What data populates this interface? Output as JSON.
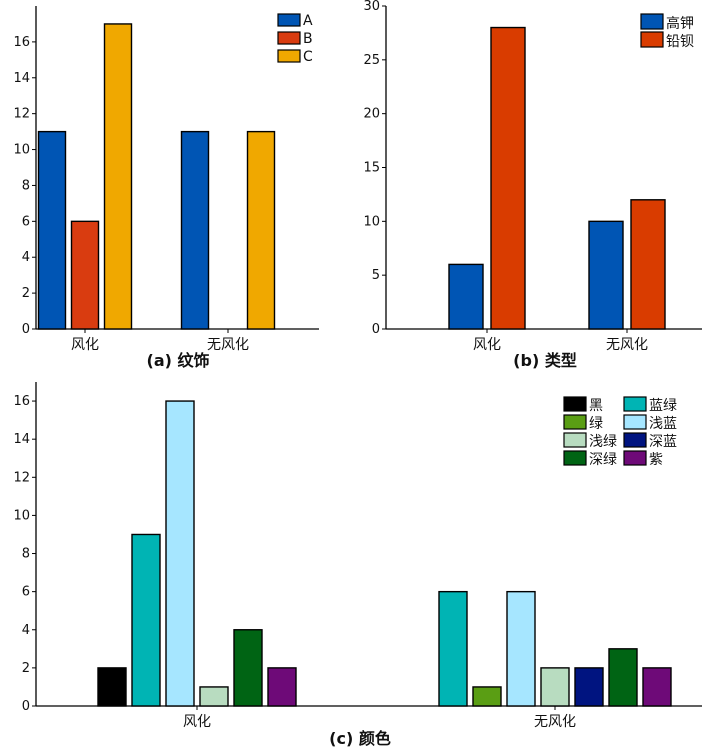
{
  "chart_data": [
    {
      "id": "a",
      "type": "bar",
      "title": "(a) 纹饰",
      "categories": [
        "风化",
        "无风化"
      ],
      "series": [
        {
          "name": "A",
          "color": "#0055b4",
          "values": [
            11,
            11
          ]
        },
        {
          "name": "B",
          "color": "#d93c10",
          "values": [
            6,
            0
          ]
        },
        {
          "name": "C",
          "color": "#f0a800",
          "values": [
            17,
            11
          ]
        }
      ],
      "ylim": [
        0,
        18
      ],
      "yticks": [
        0,
        2,
        4,
        6,
        8,
        10,
        12,
        14,
        16
      ],
      "legend": "top-right"
    },
    {
      "id": "b",
      "type": "bar",
      "title": "(b) 类型",
      "categories": [
        "风化",
        "无风化"
      ],
      "series": [
        {
          "name": "高钾",
          "color": "#0055b4",
          "values": [
            6,
            10
          ]
        },
        {
          "name": "铅钡",
          "color": "#d93c00",
          "values": [
            28,
            12
          ]
        }
      ],
      "ylim": [
        0,
        30
      ],
      "yticks": [
        0,
        5,
        10,
        15,
        20,
        25,
        30
      ],
      "legend": "top-right"
    },
    {
      "id": "c",
      "type": "bar",
      "title": "(c) 颜色",
      "categories": [
        "风化",
        "无风化"
      ],
      "series": [
        {
          "name": "黑",
          "color": "#000000",
          "values": [
            2,
            0
          ]
        },
        {
          "name": "蓝绿",
          "color": "#00b4b4",
          "values": [
            9,
            6
          ]
        },
        {
          "name": "绿",
          "color": "#5a9e14",
          "values": [
            0,
            1
          ]
        },
        {
          "name": "浅蓝",
          "color": "#a6e6ff",
          "values": [
            16,
            6
          ]
        },
        {
          "name": "浅绿",
          "color": "#b8dcc0",
          "values": [
            1,
            2
          ]
        },
        {
          "name": "深蓝",
          "color": "#001480",
          "values": [
            0,
            2
          ]
        },
        {
          "name": "深绿",
          "color": "#006414",
          "values": [
            4,
            3
          ]
        },
        {
          "name": "紫",
          "color": "#6e0a78",
          "values": [
            2,
            2
          ]
        }
      ],
      "ylim": [
        0,
        17
      ],
      "yticks": [
        0,
        2,
        4,
        6,
        8,
        10,
        12,
        14,
        16
      ],
      "legend": "top-right"
    }
  ]
}
